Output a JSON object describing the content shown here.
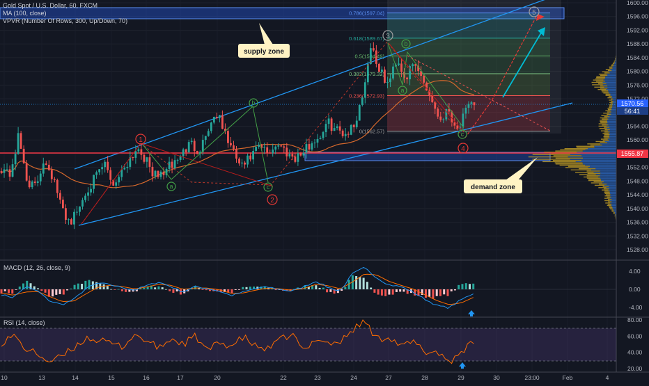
{
  "header": {
    "symbol_line": "Gold Spot / U.S. Dollar, 60, FXCM",
    "ma_line": "MA (100, close)",
    "vpvr_line": "VPVR (Number Of Rows, 300, Up/Down, 70)"
  },
  "annotations": {
    "supply_zone": "supply zone",
    "demand_zone": "demand zone"
  },
  "price_badges": {
    "last_price": "1570.56",
    "countdown": "56:41",
    "level_price": "1555.87"
  },
  "waves": {
    "impulse": [
      "1",
      "2",
      "3",
      "4",
      "5"
    ],
    "corrective": [
      "a",
      "b",
      "c",
      "a",
      "b",
      "c"
    ]
  },
  "chart_data": {
    "type": "candlestick",
    "title": "Gold Spot / U.S. Dollar, 60, FXCM",
    "x_ticks": [
      "10",
      "13",
      "14",
      "15",
      "16",
      "17",
      "20",
      "22",
      "23",
      "24",
      "27",
      "28",
      "29",
      "30",
      "23:00",
      "Feb",
      "4"
    ],
    "price_axis": {
      "ticks": [
        1600.0,
        1596.0,
        1592.0,
        1588.0,
        1584.0,
        1580.0,
        1576.0,
        1572.0,
        1568.0,
        1564.0,
        1560.0,
        1556.0,
        1552.0,
        1548.0,
        1544.0,
        1540.0,
        1536.0,
        1532.0,
        1528.0
      ],
      "range": [
        1526,
        1600.5
      ]
    },
    "price_path": [
      1552,
      1550,
      1561,
      1548,
      1546,
      1555,
      1549,
      1540,
      1536,
      1540,
      1546,
      1549,
      1553,
      1547,
      1551,
      1555,
      1558,
      1553,
      1549,
      1551,
      1553,
      1556,
      1559,
      1557,
      1563,
      1568,
      1562,
      1556,
      1552,
      1555,
      1558,
      1556,
      1559,
      1557,
      1555,
      1556,
      1559,
      1561,
      1565,
      1563,
      1562,
      1564,
      1573,
      1588,
      1580,
      1576,
      1584,
      1578,
      1582,
      1578,
      1572,
      1566,
      1569,
      1563,
      1568,
      1571
    ],
    "fibonacci": [
      {
        "ratio": "0.786",
        "price": 1597.04,
        "label": "0.786(1597.04)"
      },
      {
        "ratio": "0.618",
        "price": 1589.67,
        "label": "0.618(1589.67)"
      },
      {
        "ratio": "0.5",
        "price": 1584.49,
        "label": "0.5(1584.49)"
      },
      {
        "ratio": "0.382",
        "price": 1579.32,
        "label": "0.382(1579.32)"
      },
      {
        "ratio": "0.236",
        "price": 1572.93,
        "label": "0.236(1572.93)"
      },
      {
        "ratio": "0",
        "price": 1562.57,
        "label": "0(1562.57)"
      }
    ],
    "horizontal_level": 1555.87,
    "last_price": 1570.56,
    "macd": {
      "title": "MACD (12, 26, close, 9)",
      "ticks": [
        4.0,
        0.0,
        -4.0
      ],
      "range": [
        -5.6,
        5.2
      ],
      "macd": [
        -1.2,
        -1.8,
        0.6,
        -0.4,
        -2.6,
        -3.4,
        -2.2,
        0.2,
        1.4,
        1.0,
        0.4,
        -0.2,
        0.8,
        1.6,
        0.6,
        -0.6,
        0.6,
        0.2,
        -0.4,
        -1.4,
        -0.6,
        0.2,
        0.5,
        0.0,
        -0.4,
        0.6,
        1.8,
        0.4,
        -0.4,
        3.4,
        4.8,
        2.6,
        1.0,
        0.6,
        -0.6,
        -2.2,
        -3.6,
        -4.1,
        -2.3,
        -0.9
      ],
      "signal": [
        -0.8,
        -1.3,
        -0.6,
        -0.5,
        -1.6,
        -2.7,
        -2.6,
        -1.0,
        0.5,
        0.9,
        0.6,
        0.1,
        0.5,
        1.1,
        0.9,
        0.0,
        0.3,
        0.3,
        -0.1,
        -0.9,
        -0.8,
        -0.2,
        0.3,
        0.1,
        -0.2,
        0.2,
        1.1,
        0.8,
        0.1,
        1.6,
        3.4,
        3.2,
        1.8,
        0.9,
        0.1,
        -1.2,
        -2.5,
        -3.4,
        -3.0,
        -1.8
      ]
    },
    "rsi": {
      "title": "RSI (14, close)",
      "ticks": [
        80.0,
        60.0,
        40.0,
        20.0
      ],
      "range": [
        18,
        82
      ],
      "band": [
        30,
        70
      ],
      "values": [
        52,
        61,
        44,
        38,
        28,
        35,
        46,
        58,
        55,
        51,
        47,
        62,
        54,
        45,
        57,
        50,
        60,
        42,
        52,
        48,
        59,
        47,
        44,
        55,
        63,
        40,
        59,
        51,
        53,
        68,
        79,
        56,
        60,
        47,
        53,
        40,
        41,
        28,
        42,
        52
      ]
    }
  }
}
